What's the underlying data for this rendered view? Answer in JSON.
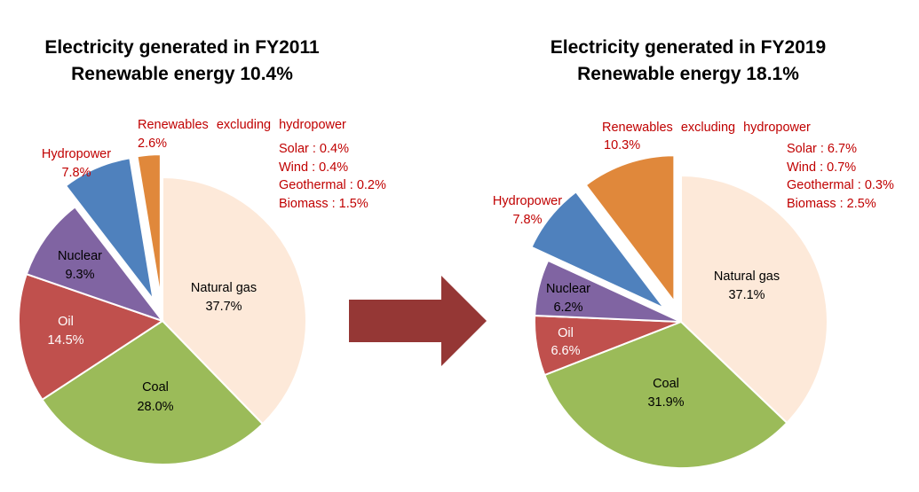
{
  "arrow_color": "#953735",
  "chart_data": [
    {
      "type": "pie",
      "title": "Electricity generated in FY2011",
      "subtitle": "Renewable energy 10.4%",
      "slices": [
        {
          "name": "Natural gas",
          "pct": "37.7%",
          "value": 37.7,
          "color": "#fde9d9",
          "exploded": false
        },
        {
          "name": "Coal",
          "pct": "28.0%",
          "value": 28.0,
          "color": "#9bbb59",
          "exploded": false
        },
        {
          "name": "Oil",
          "pct": "14.5%",
          "value": 14.5,
          "color": "#c0504d",
          "exploded": false
        },
        {
          "name": "Nuclear",
          "pct": "9.3%",
          "value": 9.3,
          "color": "#8064a2",
          "exploded": false
        },
        {
          "name": "Hydropower",
          "pct": "7.8%",
          "value": 7.8,
          "color": "#4f81bd",
          "exploded": true
        },
        {
          "name": "Renewables excluding hydropower",
          "pct": "2.6%",
          "value": 2.6,
          "color": "#e0883b",
          "exploded": true
        }
      ],
      "breakdown": [
        "Solar : 0.4%",
        "Wind : 0.4%",
        "Geothermal : 0.2%",
        "Biomass : 1.5%"
      ]
    },
    {
      "type": "pie",
      "title": "Electricity generated in FY2019",
      "subtitle": "Renewable energy 18.1%",
      "slices": [
        {
          "name": "Natural gas",
          "pct": "37.1%",
          "value": 37.1,
          "color": "#fde9d9",
          "exploded": false
        },
        {
          "name": "Coal",
          "pct": "31.9%",
          "value": 31.9,
          "color": "#9bbb59",
          "exploded": false
        },
        {
          "name": "Oil",
          "pct": "6.6%",
          "value": 6.6,
          "color": "#c0504d",
          "exploded": false
        },
        {
          "name": "Nuclear",
          "pct": "6.2%",
          "value": 6.2,
          "color": "#8064a2",
          "exploded": false
        },
        {
          "name": "Hydropower",
          "pct": "7.8%",
          "value": 7.8,
          "color": "#4f81bd",
          "exploded": true
        },
        {
          "name": "Renewables excluding hydropower",
          "pct": "10.3%",
          "value": 10.3,
          "color": "#e0883b",
          "exploded": true
        }
      ],
      "breakdown": [
        "Solar : 6.7%",
        "Wind : 0.7%",
        "Geothermal : 0.3%",
        "Biomass : 2.5%"
      ]
    }
  ]
}
